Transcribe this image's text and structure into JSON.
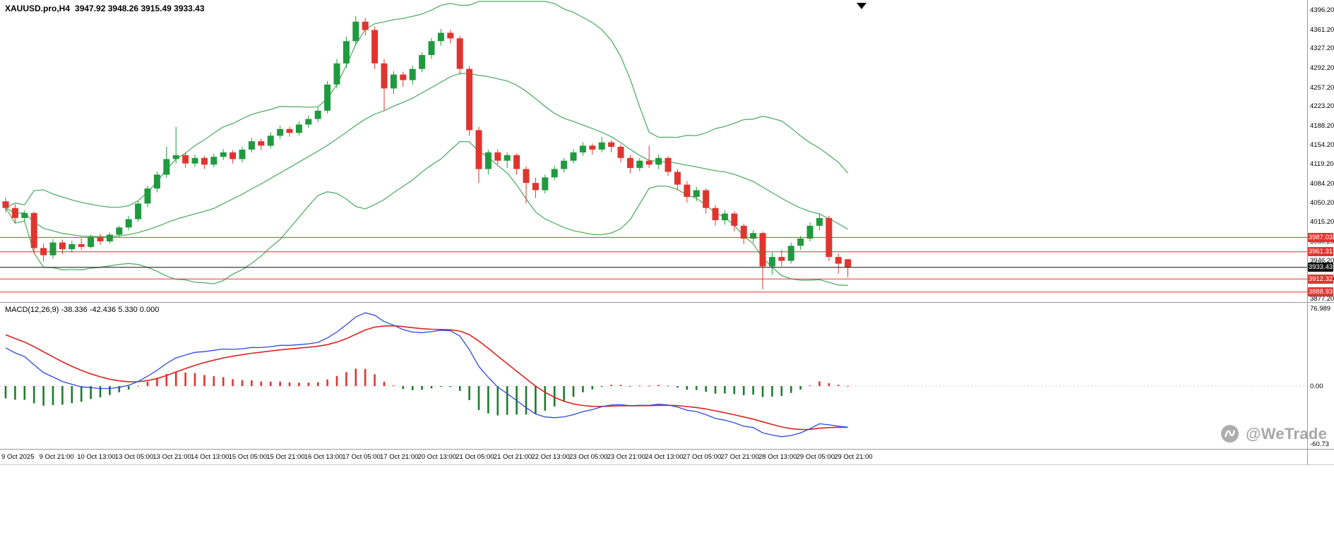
{
  "header": {
    "symbol": "XAUUSD.pro,H4",
    "ohlc": "3947.92 3948.26 3915.49 3933.43"
  },
  "watermark": {
    "text": "@WeTrade"
  },
  "colors": {
    "background": "#ffffff",
    "candle_up": "#1f9a3f",
    "candle_down": "#e0352f",
    "bollinger": "#54ae68",
    "macd_line": "#2f49dd",
    "signal_line": "#dd2222",
    "hist_positive": "#e0352f",
    "hist_negative": "#1b7d2c",
    "level_line": "#e0352f",
    "current_price_line": "#111111",
    "axis_text": "#000000",
    "divider": "#9a9a9a",
    "zero_line": "#d0d0d0",
    "watermark": "#9e9e9e"
  },
  "chart_data": {
    "type": "candlestick",
    "title": "XAUUSD.pro,H4",
    "symbol": "XAUUSD.pro",
    "timeframe": "H4",
    "ylim": [
      3877.2,
      4396.2
    ],
    "price_axis_values": [
      4396.2,
      4361.2,
      4327.2,
      4292.2,
      4257.2,
      4223.2,
      4188.2,
      4154.2,
      4119.2,
      4084.2,
      4050.2,
      4015.2,
      3980.2,
      3946.2,
      3912.2,
      3877.2
    ],
    "time_axis_labels": [
      "9 Oct 2025",
      "9 Oct 21:00",
      "10 Oct 13:00",
      "13 Oct 05:00",
      "13 Oct 21:00",
      "14 Oct 13:00",
      "15 Oct 05:00",
      "15 Oct 21:00",
      "16 Oct 13:00",
      "17 Oct 05:00",
      "17 Oct 21:00",
      "20 Oct 13:00",
      "21 Oct 05:00",
      "21 Oct 21:00",
      "22 Oct 13:00",
      "23 Oct 05:00",
      "23 Oct 21:00",
      "24 Oct 13:00",
      "27 Oct 05:00",
      "27 Oct 21:00",
      "28 Oct 13:00",
      "29 Oct 05:00",
      "29 Oct 21:00"
    ],
    "bars_per_time_label": 4,
    "candles": [
      [
        4052,
        4058,
        4032,
        4040
      ],
      [
        4040,
        4047,
        4012,
        4022
      ],
      [
        4022,
        4036,
        4016,
        4031
      ],
      [
        4031,
        4033,
        3958,
        3968
      ],
      [
        3968,
        3976,
        3944,
        3955
      ],
      [
        3955,
        3984,
        3949,
        3978
      ],
      [
        3978,
        3983,
        3957,
        3966
      ],
      [
        3966,
        3981,
        3960,
        3975
      ],
      [
        3975,
        3986,
        3965,
        3970
      ],
      [
        3970,
        3992,
        3967,
        3988
      ],
      [
        3988,
        3994,
        3974,
        3980
      ],
      [
        3980,
        3996,
        3976,
        3992
      ],
      [
        3992,
        4008,
        3988,
        4005
      ],
      [
        4005,
        4026,
        4000,
        4020
      ],
      [
        4020,
        4052,
        4015,
        4048
      ],
      [
        4048,
        4080,
        4042,
        4075
      ],
      [
        4075,
        4106,
        4068,
        4100
      ],
      [
        4100,
        4150,
        4094,
        4128
      ],
      [
        4128,
        4186,
        4120,
        4135
      ],
      [
        4135,
        4140,
        4112,
        4120
      ],
      [
        4120,
        4136,
        4114,
        4130
      ],
      [
        4130,
        4134,
        4110,
        4118
      ],
      [
        4118,
        4138,
        4113,
        4132
      ],
      [
        4132,
        4146,
        4126,
        4140
      ],
      [
        4140,
        4144,
        4120,
        4128
      ],
      [
        4128,
        4150,
        4122,
        4145
      ],
      [
        4145,
        4166,
        4140,
        4160
      ],
      [
        4160,
        4165,
        4144,
        4152
      ],
      [
        4152,
        4176,
        4147,
        4170
      ],
      [
        4170,
        4188,
        4164,
        4182
      ],
      [
        4182,
        4186,
        4168,
        4175
      ],
      [
        4175,
        4196,
        4170,
        4190
      ],
      [
        4190,
        4206,
        4184,
        4200
      ],
      [
        4200,
        4222,
        4194,
        4215
      ],
      [
        4215,
        4268,
        4210,
        4262
      ],
      [
        4262,
        4308,
        4255,
        4300
      ],
      [
        4300,
        4348,
        4292,
        4340
      ],
      [
        4340,
        4385,
        4332,
        4375
      ],
      [
        4375,
        4382,
        4350,
        4360
      ],
      [
        4360,
        4366,
        4290,
        4300
      ],
      [
        4300,
        4308,
        4215,
        4255
      ],
      [
        4255,
        4286,
        4245,
        4280
      ],
      [
        4280,
        4285,
        4258,
        4270
      ],
      [
        4270,
        4296,
        4262,
        4290
      ],
      [
        4290,
        4320,
        4284,
        4315
      ],
      [
        4315,
        4346,
        4308,
        4340
      ],
      [
        4340,
        4362,
        4332,
        4355
      ],
      [
        4355,
        4360,
        4336,
        4345
      ],
      [
        4345,
        4350,
        4280,
        4290
      ],
      [
        4290,
        4295,
        4170,
        4180
      ],
      [
        4180,
        4186,
        4085,
        4110
      ],
      [
        4110,
        4145,
        4100,
        4140
      ],
      [
        4140,
        4146,
        4118,
        4125
      ],
      [
        4125,
        4140,
        4112,
        4135
      ],
      [
        4135,
        4138,
        4100,
        4110
      ],
      [
        4110,
        4115,
        4048,
        4085
      ],
      [
        4085,
        4094,
        4058,
        4072
      ],
      [
        4072,
        4100,
        4066,
        4095
      ],
      [
        4095,
        4116,
        4090,
        4110
      ],
      [
        4110,
        4130,
        4104,
        4125
      ],
      [
        4125,
        4146,
        4120,
        4140
      ],
      [
        4140,
        4158,
        4134,
        4152
      ],
      [
        4152,
        4156,
        4136,
        4145
      ],
      [
        4145,
        4168,
        4140,
        4158
      ],
      [
        4158,
        4162,
        4140,
        4150
      ],
      [
        4150,
        4154,
        4122,
        4130
      ],
      [
        4130,
        4135,
        4102,
        4112
      ],
      [
        4112,
        4130,
        4106,
        4125
      ],
      [
        4125,
        4152,
        4112,
        4118
      ],
      [
        4118,
        4136,
        4110,
        4130
      ],
      [
        4130,
        4133,
        4098,
        4105
      ],
      [
        4105,
        4110,
        4072,
        4082
      ],
      [
        4082,
        4088,
        4050,
        4060
      ],
      [
        4060,
        4078,
        4052,
        4072
      ],
      [
        4072,
        4075,
        4030,
        4040
      ],
      [
        4040,
        4045,
        4008,
        4018
      ],
      [
        4018,
        4036,
        4010,
        4030
      ],
      [
        4030,
        4034,
        3998,
        4008
      ],
      [
        4008,
        4012,
        3975,
        3985
      ],
      [
        3985,
        4000,
        3978,
        3995
      ],
      [
        3995,
        3998,
        3894,
        3935
      ],
      [
        3935,
        3960,
        3920,
        3952
      ],
      [
        3952,
        3965,
        3935,
        3945
      ],
      [
        3945,
        3978,
        3940,
        3972
      ],
      [
        3972,
        3990,
        3965,
        3985
      ],
      [
        3985,
        4014,
        3980,
        4008
      ],
      [
        4008,
        4030,
        4000,
        4022
      ],
      [
        4022,
        4026,
        3945,
        3952
      ],
      [
        3952,
        3958,
        3922,
        3940
      ],
      [
        3947.92,
        3948.26,
        3915.49,
        3933.43
      ]
    ],
    "bollinger": {
      "period": 20,
      "deviation": 2
    },
    "levels": [
      {
        "value": 3987.03
      },
      {
        "value": 3961.31
      },
      {
        "value": 3912.32
      },
      {
        "value": 3888.93
      }
    ],
    "current_price": {
      "value": 3933.43
    },
    "macd": {
      "title": "MACD(12,26,9) -38.336 -42.436 5.330 0.000",
      "params": [
        12,
        26,
        9
      ],
      "axis_labels": [
        "76.989",
        "0.00",
        "-60.73"
      ],
      "axis_values": [
        76.989,
        0,
        -60.73
      ],
      "seed_offsets": [
        12,
        -30,
        12
      ]
    }
  }
}
